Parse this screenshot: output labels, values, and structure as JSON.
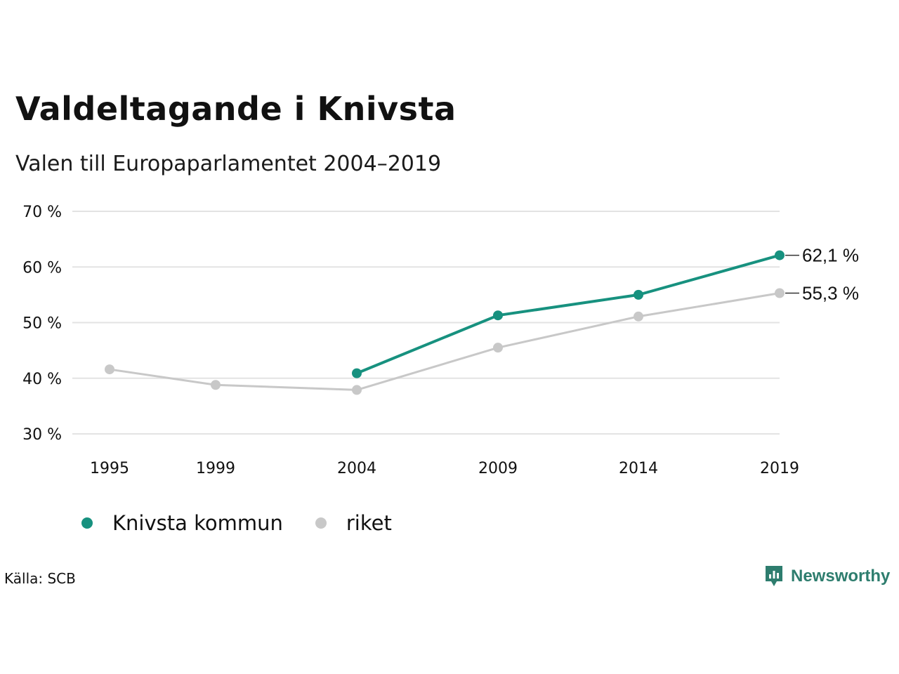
{
  "title": "Valdeltagande i Knivsta",
  "subtitle": "Valen till Europaparlamentet 2004–2019",
  "source": "Källa: SCB",
  "brand": {
    "name": "Newsworthy",
    "icon": "newsworthy-logo-icon",
    "color": "#2e7d6e"
  },
  "chart_data": {
    "type": "line",
    "x": [
      1995,
      1999,
      2004,
      2009,
      2014,
      2019
    ],
    "x_tick_labels": [
      "1995",
      "1999",
      "2004",
      "2009",
      "2014",
      "2019"
    ],
    "y_ticks": [
      30,
      40,
      50,
      60,
      70
    ],
    "y_tick_labels": [
      "30 %",
      "40 %",
      "50 %",
      "60 %",
      "70 %"
    ],
    "ylim": [
      30,
      70
    ],
    "grid": true,
    "legend_position": "bottom-left",
    "series": [
      {
        "name": "Knivsta kommun",
        "color": "#17917f",
        "values": [
          null,
          null,
          40.9,
          51.3,
          55.0,
          62.1
        ],
        "end_label": "62,1 %"
      },
      {
        "name": "riket",
        "color": "#c8c8c8",
        "values": [
          41.6,
          38.8,
          37.9,
          45.5,
          51.1,
          55.3
        ],
        "end_label": "55,3 %"
      }
    ]
  }
}
